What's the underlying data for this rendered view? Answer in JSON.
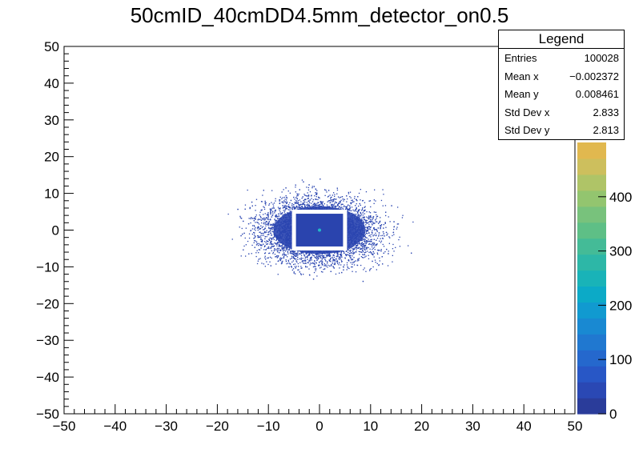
{
  "chart_data": {
    "type": "heatmap",
    "title": "50cmID_40cmDD4.5mm_detector_on0.5",
    "xlabel": "",
    "ylabel": "",
    "xlim": [
      -50,
      50
    ],
    "ylim": [
      -50,
      50
    ],
    "x_ticks": [
      "−50",
      "−40",
      "−30",
      "−20",
      "−10",
      "0",
      "10",
      "20",
      "30",
      "40",
      "50"
    ],
    "y_ticks": [
      "−50",
      "−40",
      "−30",
      "−20",
      "−10",
      "0",
      "10",
      "20",
      "30",
      "40",
      "50"
    ],
    "colorbar": {
      "range": [
        0,
        500
      ],
      "ticks": [
        "0",
        "100",
        "200",
        "300",
        "400"
      ],
      "colors": [
        "#2a3c9a",
        "#2a48b4",
        "#2857c6",
        "#2568cd",
        "#2078d0",
        "#1989d2",
        "#119ad0",
        "#0caac7",
        "#19b3b8",
        "#2db7a7",
        "#44bb97",
        "#5ebf86",
        "#78c27c",
        "#93c56f",
        "#afc467",
        "#cdbf5d",
        "#e1b84f"
      ]
    },
    "hole": {
      "x0": -5,
      "x1": 5,
      "y0": -5,
      "y1": 5
    },
    "center": {
      "x": 0,
      "y": 0
    },
    "stats": {
      "header": "Legend",
      "rows": [
        {
          "label": "Entries",
          "value": "100028"
        },
        {
          "label": "Mean x",
          "value": "−0.002372"
        },
        {
          "label": "Mean y",
          "value": "0.008461"
        },
        {
          "label": "Std Dev x",
          "value": "2.833"
        },
        {
          "label": "Std Dev y",
          "value": "2.813"
        }
      ]
    },
    "colors": {
      "cloud": "#2a45b0",
      "hole": "#ffffff"
    }
  }
}
